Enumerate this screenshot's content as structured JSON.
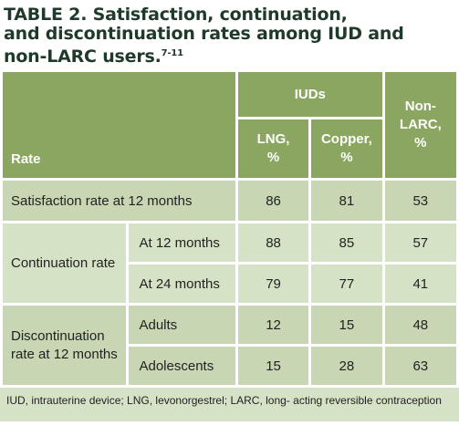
{
  "title": {
    "text": "TABLE 2. Satisfaction, continuation, and discontinuation rates among IUD and non-LARC users.",
    "line1": "TABLE 2. Satisfaction, continuation,",
    "line2": "and discontinuation rates among IUD and",
    "line3": "non-LARC users.",
    "refs": "7-11"
  },
  "header": {
    "rate": "Rate",
    "iuds": "IUDs",
    "lng_l1": "LNG,",
    "lng_l2": "%",
    "copper_l1": "Copper,",
    "copper_l2": "%",
    "nonlarc_l1": "Non-",
    "nonlarc_l2": "LARC,",
    "nonlarc_l3": "%"
  },
  "rows": {
    "satisfaction": {
      "label": "Satisfaction rate at 12 months",
      "lng": "86",
      "copper": "81",
      "nonlarc": "53"
    },
    "continuation": {
      "label": "Continuation rate",
      "r12": {
        "label": "At 12 months",
        "lng": "88",
        "copper": "85",
        "nonlarc": "57"
      },
      "r24": {
        "label": "At 24 months",
        "lng": "79",
        "copper": "77",
        "nonlarc": "41"
      }
    },
    "discontinuation": {
      "label_l1": "Discontinuation",
      "label_l2": "rate at 12 months",
      "adults": {
        "label": "Adults",
        "lng": "12",
        "copper": "15",
        "nonlarc": "48"
      },
      "adolescents": {
        "label": "Adolescents",
        "lng": "15",
        "copper": "28",
        "nonlarc": "63"
      }
    }
  },
  "footnote": "IUD, intrauterine device; LNG, levonorgestrel; LARC, long- acting reversible contraception",
  "colors": {
    "header": "#8aa660",
    "band_dark": "#c8d6b3",
    "band_light": "#d6e2c6",
    "title": "#1f3a2a"
  }
}
